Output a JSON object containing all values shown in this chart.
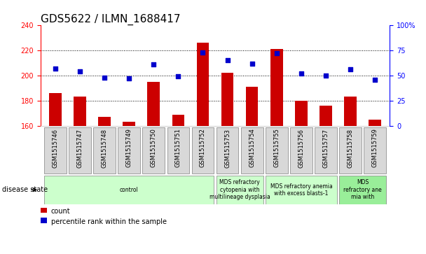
{
  "title": "GDS5622 / ILMN_1688417",
  "samples": [
    "GSM1515746",
    "GSM1515747",
    "GSM1515748",
    "GSM1515749",
    "GSM1515750",
    "GSM1515751",
    "GSM1515752",
    "GSM1515753",
    "GSM1515754",
    "GSM1515755",
    "GSM1515756",
    "GSM1515757",
    "GSM1515758",
    "GSM1515759"
  ],
  "counts": [
    186,
    183,
    167,
    163,
    195,
    169,
    226,
    202,
    191,
    221,
    180,
    176,
    183,
    165
  ],
  "percentile_ranks": [
    57,
    54,
    48,
    47,
    61,
    49,
    73,
    65,
    62,
    72,
    52,
    50,
    56,
    46
  ],
  "ylim_left": [
    160,
    240
  ],
  "ylim_right": [
    0,
    100
  ],
  "yticks_left": [
    160,
    180,
    200,
    220,
    240
  ],
  "yticks_right": [
    0,
    25,
    50,
    75,
    100
  ],
  "bar_color": "#cc0000",
  "dot_color": "#0000cc",
  "bar_width": 0.5,
  "groups": [
    {
      "label": "control",
      "start": 0,
      "end": 7,
      "color": "#ccffcc"
    },
    {
      "label": "MDS refractory\ncytopenia with\nmultilineage dysplasia",
      "start": 7,
      "end": 9,
      "color": "#ccffcc"
    },
    {
      "label": "MDS refractory anemia\nwith excess blasts-1",
      "start": 9,
      "end": 12,
      "color": "#ccffcc"
    },
    {
      "label": "MDS\nrefractory ane\nmia with",
      "start": 12,
      "end": 14,
      "color": "#99ee99"
    }
  ],
  "disease_state_label": "disease state",
  "legend_items": [
    {
      "label": "count",
      "color": "#cc0000"
    },
    {
      "label": "percentile rank within the sample",
      "color": "#0000cc"
    }
  ],
  "title_fontsize": 11,
  "tick_fontsize": 7,
  "label_fontsize": 8,
  "sample_label_fontsize": 6,
  "bg_color": "#d8d8d8"
}
